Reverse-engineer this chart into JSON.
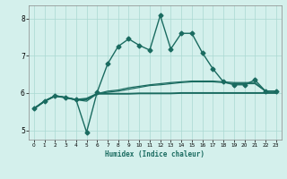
{
  "xlabel": "Humidex (Indice chaleur)",
  "bg_color": "#d4f0ec",
  "grid_color": "#aad8d2",
  "line_color": "#1a6b60",
  "xlim": [
    -0.5,
    23.5
  ],
  "ylim": [
    4.75,
    8.35
  ],
  "yticks": [
    5,
    6,
    7,
    8
  ],
  "xticks": [
    0,
    1,
    2,
    3,
    4,
    5,
    6,
    7,
    8,
    9,
    10,
    11,
    12,
    13,
    14,
    15,
    16,
    17,
    18,
    19,
    20,
    21,
    22,
    23
  ],
  "series": [
    {
      "x": [
        0,
        1,
        2,
        3,
        4,
        5,
        6,
        7,
        8,
        9,
        10,
        11,
        12,
        13,
        14,
        15,
        16,
        17,
        18,
        19,
        20,
        21,
        22,
        23
      ],
      "y": [
        5.58,
        5.78,
        5.93,
        5.88,
        5.82,
        4.95,
        6.02,
        6.78,
        7.25,
        7.45,
        7.28,
        7.15,
        8.08,
        7.18,
        7.6,
        7.6,
        7.08,
        6.65,
        6.3,
        6.22,
        6.22,
        6.35,
        6.05,
        6.05
      ],
      "marker": "D",
      "markersize": 2.5,
      "linewidth": 1.0,
      "zorder": 5
    },
    {
      "x": [
        0,
        1,
        2,
        3,
        4,
        5,
        6,
        7,
        8,
        9,
        10,
        11,
        12,
        13,
        14,
        15,
        16,
        17,
        18,
        19,
        20,
        21,
        22,
        23
      ],
      "y": [
        5.58,
        5.78,
        5.92,
        5.88,
        5.82,
        5.85,
        5.98,
        5.98,
        5.98,
        5.98,
        5.99,
        5.99,
        5.99,
        5.99,
        6.0,
        6.0,
        6.0,
        6.0,
        6.0,
        6.0,
        6.0,
        6.0,
        6.0,
        6.0
      ],
      "marker": null,
      "markersize": 0,
      "linewidth": 1.4,
      "zorder": 3
    },
    {
      "x": [
        0,
        1,
        2,
        3,
        4,
        5,
        6,
        7,
        8,
        9,
        10,
        11,
        12,
        13,
        14,
        15,
        16,
        17,
        18,
        19,
        20,
        21,
        22,
        23
      ],
      "y": [
        5.58,
        5.78,
        5.92,
        5.88,
        5.82,
        5.82,
        5.98,
        6.02,
        6.05,
        6.1,
        6.15,
        6.2,
        6.22,
        6.25,
        6.28,
        6.3,
        6.3,
        6.3,
        6.28,
        6.25,
        6.25,
        6.25,
        6.05,
        6.05
      ],
      "marker": null,
      "markersize": 0,
      "linewidth": 0.9,
      "zorder": 3
    },
    {
      "x": [
        0,
        1,
        2,
        3,
        4,
        5,
        6,
        7,
        8,
        9,
        10,
        11,
        12,
        13,
        14,
        15,
        16,
        17,
        18,
        19,
        20,
        21,
        22,
        23
      ],
      "y": [
        5.58,
        5.78,
        5.92,
        5.88,
        5.82,
        5.78,
        5.98,
        6.05,
        6.08,
        6.14,
        6.18,
        6.22,
        6.25,
        6.28,
        6.3,
        6.32,
        6.32,
        6.32,
        6.3,
        6.28,
        6.28,
        6.28,
        6.05,
        6.05
      ],
      "marker": null,
      "markersize": 0,
      "linewidth": 0.9,
      "zorder": 3
    }
  ]
}
